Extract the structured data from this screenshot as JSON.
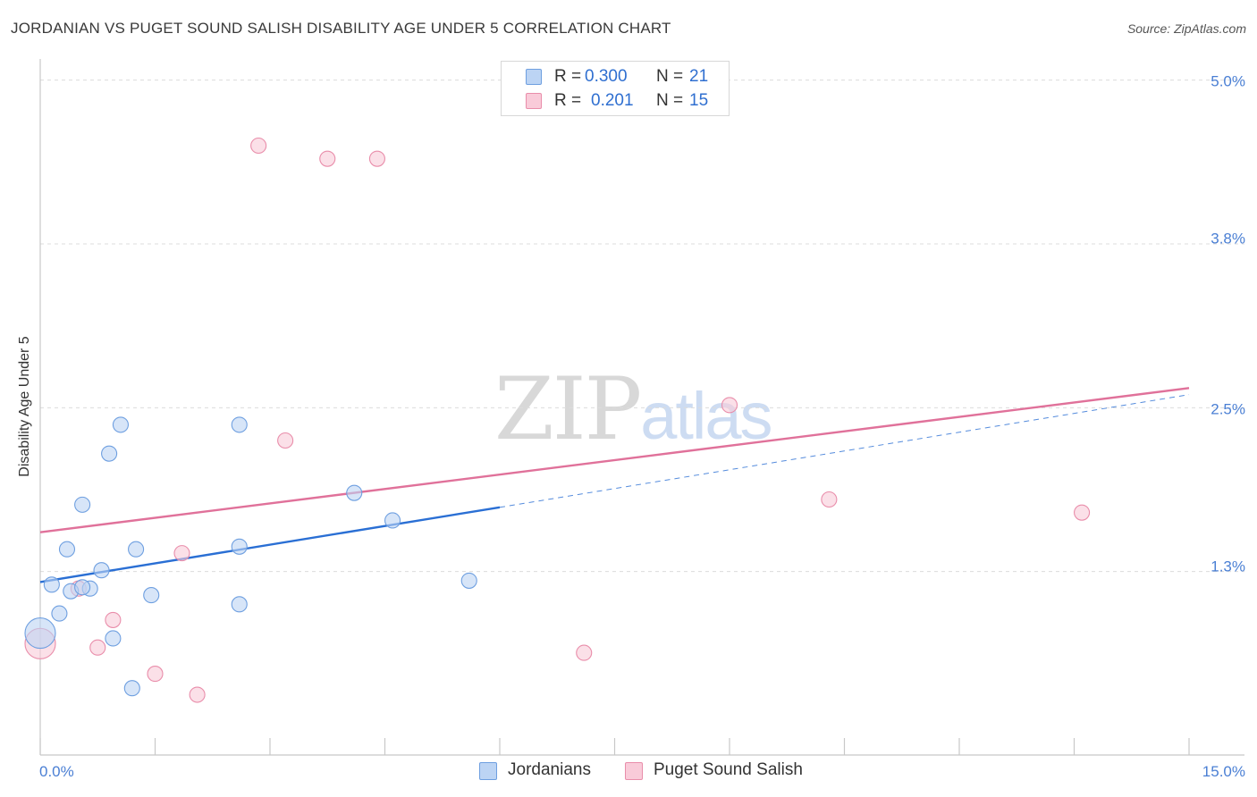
{
  "header": {
    "title": "JORDANIAN VS PUGET SOUND SALISH DISABILITY AGE UNDER 5 CORRELATION CHART",
    "source": "Source: ZipAtlas.com"
  },
  "watermark": {
    "part1": "ZIP",
    "part2": "atlas"
  },
  "legend": {
    "rows": [
      {
        "r_label": "R =",
        "r_value": "0.300",
        "n_label": "N =",
        "n_value": "21"
      },
      {
        "r_label": "R =",
        "r_value": "0.201",
        "n_label": "N =",
        "n_value": "15"
      }
    ]
  },
  "bottom_legend": {
    "series1": "Jordanians",
    "series2": "Puget Sound Salish"
  },
  "colors": {
    "blue_fill": "#bcd4f4",
    "blue_stroke": "#6e9fe0",
    "blue_line": "#2a6fd4",
    "pink_fill": "#f9cbd9",
    "pink_stroke": "#e98daa",
    "pink_line": "#e0719a",
    "grid": "#dcdcdc",
    "tick_text": "#4a7fd4"
  },
  "chart_data": {
    "type": "scatter",
    "title": "JORDANIAN VS PUGET SOUND SALISH DISABILITY AGE UNDER 5 CORRELATION CHART",
    "xlabel": "",
    "ylabel": "Disability Age Under 5",
    "xlim": [
      0,
      15
    ],
    "ylim": [
      0,
      5.1
    ],
    "x_tick_labels": [
      {
        "value": 0,
        "label": "0.0%"
      },
      {
        "value": 15,
        "label": "15.0%"
      }
    ],
    "y_tick_labels": [
      {
        "value": 5.0,
        "label": "5.0%"
      },
      {
        "value": 3.8,
        "label": "3.8%"
      },
      {
        "value": 2.5,
        "label": "2.5%"
      },
      {
        "value": 1.3,
        "label": "1.3%"
      }
    ],
    "y_gridlines": [
      5.0,
      3.75,
      2.5,
      1.25
    ],
    "x_minor_ticks": [
      0,
      1.5,
      3,
      4.5,
      6,
      7.5,
      9,
      10.5,
      12,
      13.5,
      15
    ],
    "grid": true,
    "legend": "bottom-center",
    "series": [
      {
        "name": "Jordanians",
        "r": 0.3,
        "n": 21,
        "points": [
          [
            0.0,
            0.78,
            "large"
          ],
          [
            0.15,
            1.15
          ],
          [
            0.35,
            1.42
          ],
          [
            0.55,
            1.76
          ],
          [
            0.9,
            2.15
          ],
          [
            1.05,
            2.37
          ],
          [
            0.25,
            0.93
          ],
          [
            0.4,
            1.1
          ],
          [
            0.65,
            1.12
          ],
          [
            0.8,
            1.26
          ],
          [
            0.95,
            0.74
          ],
          [
            1.25,
            1.42
          ],
          [
            1.45,
            1.07
          ],
          [
            1.2,
            0.36
          ],
          [
            2.6,
            1.0
          ],
          [
            2.6,
            1.44
          ],
          [
            2.6,
            2.37
          ],
          [
            4.1,
            1.85
          ],
          [
            4.6,
            1.64
          ],
          [
            5.6,
            1.18
          ],
          [
            0.55,
            1.13
          ]
        ],
        "trend": {
          "x0": 0,
          "y0": 1.17,
          "x1": 6,
          "y1": 1.74
        },
        "trend_extension": {
          "x0": 6,
          "y0": 1.74,
          "x1": 15,
          "y1": 2.6
        }
      },
      {
        "name": "Puget Sound Salish",
        "r": 0.201,
        "n": 15,
        "points": [
          [
            0.0,
            0.7,
            "large"
          ],
          [
            0.5,
            1.12
          ],
          [
            0.75,
            0.67
          ],
          [
            0.95,
            0.88
          ],
          [
            1.5,
            0.47
          ],
          [
            1.85,
            1.39
          ],
          [
            2.05,
            0.31
          ],
          [
            2.85,
            4.5
          ],
          [
            3.2,
            2.25
          ],
          [
            3.75,
            4.4
          ],
          [
            4.4,
            4.4
          ],
          [
            7.1,
            0.63
          ],
          [
            9.0,
            2.52
          ],
          [
            10.3,
            1.8
          ],
          [
            13.6,
            1.7
          ]
        ],
        "trend": {
          "x0": 0,
          "y0": 1.55,
          "x1": 15,
          "y1": 2.65
        }
      }
    ]
  }
}
